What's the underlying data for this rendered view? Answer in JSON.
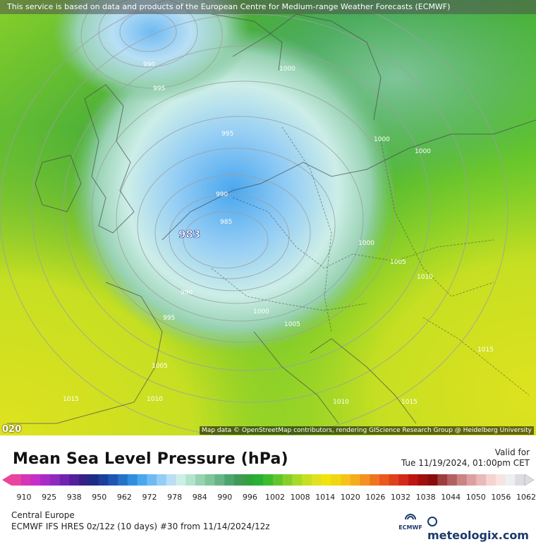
{
  "map": {
    "banner": "This service is based on data and products of the European Centre for Medium-range Weather Forecasts (ECMWF)",
    "attribution": "Map data © OpenStreetMap contributors, rendering GIScience Research Group @ Heidelberg University",
    "corner_label": "020",
    "pressure_labels": [
      "990",
      "995",
      "1000",
      "995",
      "1000",
      "1000",
      "990",
      "985",
      "983",
      "1000",
      "1005",
      "1010",
      "990",
      "995",
      "1000",
      "1005",
      "1015",
      "1005",
      "1010",
      "1015",
      "1010",
      "1015"
    ],
    "low_center": "983"
  },
  "header": {
    "title": "Mean Sea Level Pressure (hPa)",
    "valid_label": "Valid for",
    "valid_time": "Tue 11/19/2024, 01:00pm CET"
  },
  "colorbar": {
    "ticks": [
      "910",
      "925",
      "938",
      "950",
      "962",
      "972",
      "978",
      "984",
      "990",
      "996",
      "1002",
      "1008",
      "1014",
      "1020",
      "1026",
      "1032",
      "1038",
      "1044",
      "1050",
      "1056",
      "1062"
    ],
    "colors": [
      "#e8469e",
      "#d734b8",
      "#c52fc8",
      "#aa2ac8",
      "#8d2bbf",
      "#6f23b0",
      "#531f9c",
      "#3a1f87",
      "#1d2c86",
      "#1b3f9a",
      "#1e56b4",
      "#2473c8",
      "#2e8fde",
      "#4aa7ee",
      "#6fbaf2",
      "#94cdf5",
      "#b8dff5",
      "#cdeee8",
      "#b2e3cc",
      "#98d2b2",
      "#7fc59a",
      "#67b586",
      "#4fa370",
      "#3e9a57",
      "#33a23e",
      "#28b136",
      "#3fbc2e",
      "#61c62b",
      "#86cf2a",
      "#a8d928",
      "#c6df22",
      "#dfe21e",
      "#f0e40f",
      "#f2d614",
      "#f5c41a",
      "#f5ac1d",
      "#f3921f",
      "#ef7520",
      "#e95a1e",
      "#e0401c",
      "#d42818",
      "#bd1414",
      "#a10e0e",
      "#8a0b0b",
      "#9c3e3e",
      "#b46060",
      "#c98484",
      "#dca0a0",
      "#eab9b9",
      "#f4d3d3",
      "#f8e3e3",
      "#efeff0",
      "#dcdde0"
    ]
  },
  "footer": {
    "region": "Central Europe",
    "model": "ECMWF IFS HRES 0z/12z (10 days) #30 from  11/14/2024/12z",
    "ecmwf_logo_text": "ECMWF",
    "brand": "meteologix.com"
  }
}
